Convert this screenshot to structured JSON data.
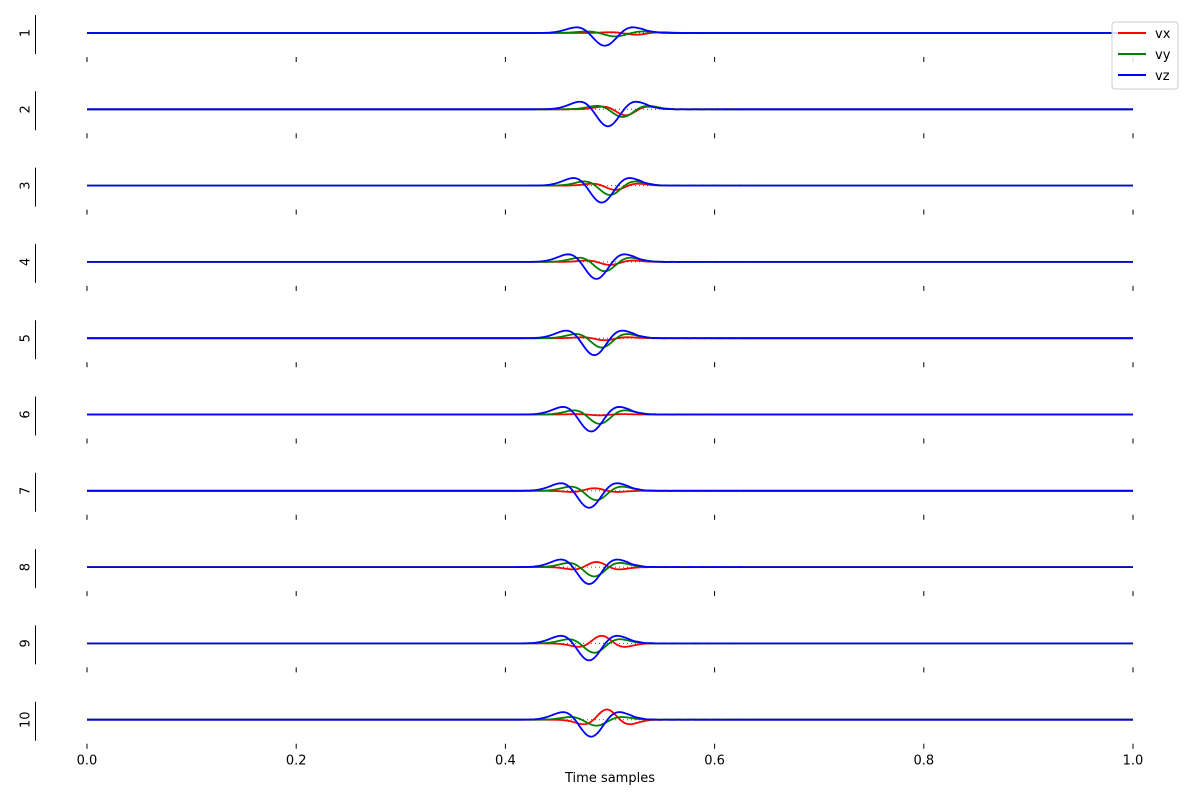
{
  "chart_data": {
    "type": "line",
    "xlabel": "Time samples",
    "xlim": [
      0.0,
      1.0
    ],
    "xticks": [
      0.0,
      0.2,
      0.4,
      0.6,
      0.8,
      1.0
    ],
    "xtick_labels": [
      "0.0",
      "0.2",
      "0.4",
      "0.6",
      "0.8",
      "1.0"
    ],
    "legend": {
      "placement": "top-right",
      "entries": [
        "vx",
        "vy",
        "vz"
      ]
    },
    "colors": {
      "vx": "#ff0000",
      "vy": "#008000",
      "vz": "#0000ff"
    },
    "grid": false,
    "row_labels": [
      "1",
      "2",
      "3",
      "4",
      "5",
      "6",
      "7",
      "8",
      "9",
      "10"
    ],
    "rows": [
      {
        "label": "1",
        "vx": [
          0.525,
          -0.1,
          0.02,
          0.004
        ],
        "vy": [
          0.505,
          -0.2,
          0.022,
          0.006
        ],
        "vz": [
          0.495,
          -0.75,
          0.022,
          0.008
        ]
      },
      {
        "label": "2",
        "vx": [
          0.515,
          -0.35,
          0.018,
          0.004
        ],
        "vy": [
          0.512,
          -0.45,
          0.02,
          0.006
        ],
        "vz": [
          0.498,
          -1.0,
          0.022,
          0.008
        ]
      },
      {
        "label": "3",
        "vx": [
          0.505,
          -0.25,
          0.018,
          0.004
        ],
        "vy": [
          0.5,
          -0.55,
          0.02,
          0.006
        ],
        "vz": [
          0.492,
          -1.0,
          0.022,
          0.008
        ]
      },
      {
        "label": "4",
        "vx": [
          0.5,
          -0.18,
          0.018,
          0.004
        ],
        "vy": [
          0.495,
          -0.55,
          0.02,
          0.006
        ],
        "vz": [
          0.487,
          -1.0,
          0.022,
          0.008
        ]
      },
      {
        "label": "5",
        "vx": [
          0.495,
          -0.12,
          0.018,
          0.004
        ],
        "vy": [
          0.492,
          -0.55,
          0.02,
          0.006
        ],
        "vz": [
          0.485,
          -1.0,
          0.022,
          0.008
        ]
      },
      {
        "label": "6",
        "vx": [
          0.49,
          -0.05,
          0.018,
          0.004
        ],
        "vy": [
          0.49,
          -0.55,
          0.02,
          0.006
        ],
        "vz": [
          0.482,
          -1.0,
          0.022,
          0.008
        ]
      },
      {
        "label": "7",
        "vx": [
          0.485,
          0.15,
          0.018,
          0.004
        ],
        "vy": [
          0.487,
          -0.55,
          0.02,
          0.006
        ],
        "vz": [
          0.48,
          -1.0,
          0.022,
          0.008
        ]
      },
      {
        "label": "8",
        "vx": [
          0.487,
          0.3,
          0.018,
          0.004
        ],
        "vy": [
          0.485,
          -0.55,
          0.02,
          0.006
        ],
        "vz": [
          0.48,
          -1.0,
          0.022,
          0.008
        ]
      },
      {
        "label": "9",
        "vx": [
          0.492,
          0.45,
          0.018,
          0.004
        ],
        "vy": [
          0.485,
          -0.55,
          0.02,
          0.006
        ],
        "vz": [
          0.48,
          -1.0,
          0.022,
          0.008
        ]
      },
      {
        "label": "10",
        "vx": [
          0.497,
          0.6,
          0.018,
          0.004
        ],
        "vy": [
          0.487,
          -0.35,
          0.02,
          0.006
        ],
        "vz": [
          0.482,
          -1.0,
          0.022,
          0.008
        ]
      }
    ]
  }
}
